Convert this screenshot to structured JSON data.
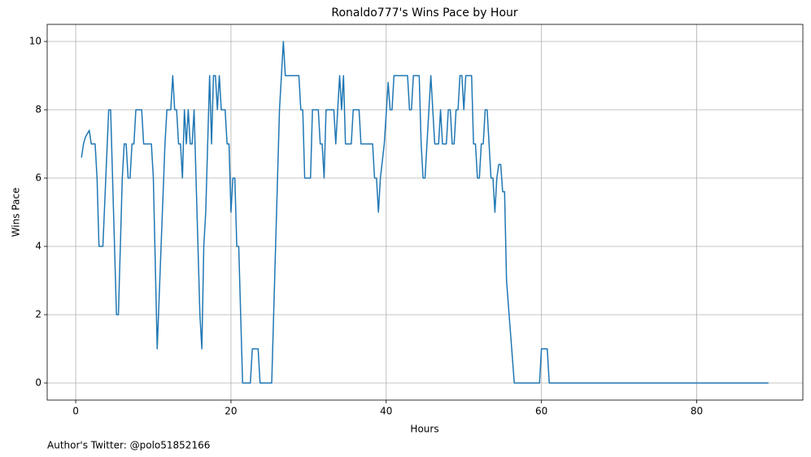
{
  "chart_data": {
    "type": "line",
    "title": "Ronaldo777's Wins Pace by Hour",
    "x_label": "Hours",
    "y_label": "Wins Pace",
    "footnote": "Author's Twitter: @polo51852166",
    "x": [
      0.75,
      1.0,
      1.25,
      1.5,
      1.75,
      2.0,
      2.5,
      2.75,
      3.0,
      3.5,
      4.25,
      4.5,
      5.25,
      5.5,
      6.0,
      6.25,
      6.5,
      6.75,
      7.0,
      7.25,
      7.5,
      7.75,
      8.5,
      8.75,
      9.75,
      10.0,
      10.5,
      11.0,
      11.5,
      11.75,
      12.25,
      12.5,
      12.75,
      13.0,
      13.25,
      13.5,
      13.75,
      14.0,
      14.25,
      14.5,
      14.75,
      15.0,
      15.25,
      15.5,
      15.75,
      16.0,
      16.25,
      16.5,
      16.75,
      17.0,
      17.25,
      17.5,
      17.75,
      18.0,
      18.25,
      18.5,
      18.75,
      19.25,
      19.5,
      19.75,
      20.0,
      20.25,
      20.5,
      20.75,
      21.0,
      21.25,
      21.5,
      22.5,
      22.75,
      23.5,
      23.75,
      25.25,
      25.5,
      26.0,
      26.25,
      26.75,
      27.0,
      28.75,
      29.0,
      29.25,
      29.5,
      30.25,
      30.5,
      31.25,
      31.5,
      31.75,
      32.0,
      32.25,
      33.25,
      33.5,
      33.75,
      34.0,
      34.25,
      34.5,
      34.75,
      35.5,
      35.75,
      36.5,
      36.75,
      38.25,
      38.5,
      38.75,
      39.0,
      39.25,
      39.75,
      40.25,
      40.5,
      40.75,
      41.0,
      42.75,
      43.0,
      43.25,
      43.5,
      44.25,
      44.5,
      44.75,
      45.0,
      45.25,
      45.75,
      46.0,
      46.25,
      46.75,
      47.0,
      47.25,
      47.75,
      48.0,
      48.25,
      48.5,
      48.75,
      49.0,
      49.25,
      49.5,
      49.75,
      50.0,
      50.25,
      51.0,
      51.25,
      51.5,
      51.75,
      52.0,
      52.25,
      52.5,
      52.75,
      53.0,
      53.25,
      53.5,
      53.75,
      54.0,
      54.25,
      54.5,
      54.75,
      55.0,
      55.25,
      55.5,
      56.0,
      56.5,
      59.75,
      60.0,
      60.75,
      61.0,
      89.25
    ],
    "values": [
      6.6,
      7.0,
      7.2,
      7.3,
      7.4,
      7.0,
      7.0,
      6.0,
      4.0,
      4.0,
      8,
      8,
      2,
      2,
      6,
      7,
      7,
      6,
      6,
      7,
      7,
      8,
      8,
      7,
      7,
      6,
      1,
      4,
      7,
      8,
      8,
      9,
      8,
      8,
      7,
      7,
      6,
      8,
      7,
      8,
      7,
      7,
      8,
      6,
      4,
      2,
      1,
      4,
      5,
      7,
      9,
      7,
      9,
      9,
      8,
      9,
      8,
      8,
      7,
      7,
      5,
      6,
      6,
      4,
      4,
      2,
      0,
      0,
      1,
      1,
      0,
      0,
      2,
      6,
      8,
      10,
      9,
      9,
      8,
      8,
      6,
      6,
      8,
      8,
      7,
      7,
      6,
      8,
      8,
      7,
      8,
      9,
      8,
      9,
      7,
      7,
      8,
      8,
      7,
      7,
      6,
      6,
      5,
      6,
      7,
      8.8,
      8,
      8,
      9,
      9,
      8,
      8,
      9,
      9,
      7,
      6,
      6,
      7,
      9,
      8,
      7,
      7,
      8,
      7,
      7,
      8,
      8,
      7,
      7,
      8,
      8,
      9,
      9,
      8,
      9,
      9,
      7,
      7,
      6,
      6,
      7,
      7,
      8,
      8,
      7,
      6,
      6,
      5,
      6,
      6.4,
      6.4,
      5.6,
      5.6,
      3,
      1.5,
      0,
      0,
      1,
      1,
      0,
      0
    ],
    "color": "#1f77b4",
    "xlim": [
      -3.675,
      93.675
    ],
    "ylim": [
      -0.5,
      10.5
    ],
    "xticks": [
      0,
      20,
      40,
      60,
      80
    ],
    "yticks": [
      0,
      2,
      4,
      6,
      8,
      10
    ],
    "grid": true
  }
}
